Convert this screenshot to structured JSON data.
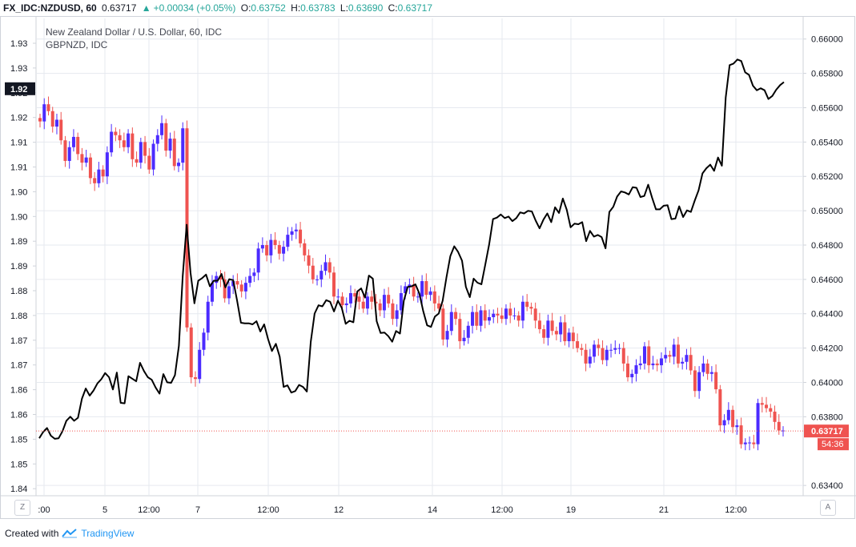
{
  "header": {
    "symbol": "FX_IDC:NZDUSD, 60",
    "last": "0.63717",
    "change": "+0.00034 (+0.05%)",
    "open_label": "O:",
    "open": "0.63752",
    "high_label": "H:",
    "high": "0.63783",
    "low_label": "L:",
    "low": "0.63690",
    "close_label": "C:",
    "close": "0.63717"
  },
  "legend": {
    "main": "New Zealand Dollar / U.S. Dollar, 60, IDC",
    "compare": "GBPNZD, IDC"
  },
  "price_tag": {
    "value": "0.63717",
    "countdown": "54:36"
  },
  "left_tag": "1.92",
  "buttons": {
    "zoom": "Z",
    "auto": "A"
  },
  "footer": {
    "created_with": "Created with",
    "brand": "TradingView"
  },
  "colors": {
    "up": "#4b2bff",
    "down": "#ef5350",
    "line": "#000000",
    "grid": "#e6e9ef",
    "price_line": "#ef5350",
    "tv_blue": "#2196f3"
  },
  "chart_data": {
    "type": "line",
    "x_ticks": [
      ":00",
      "5",
      "12:00",
      "7",
      "12:00",
      "12",
      "14",
      "12:00",
      "19",
      "21",
      "12:00"
    ],
    "left_axis": {
      "labels": [
        "1.93",
        "1.93",
        "1.92",
        "1.92",
        "1.91",
        "1.91",
        "1.90",
        "1.90",
        "1.89",
        "1.89",
        "1.88",
        "1.88",
        "1.87",
        "1.87",
        "1.86",
        "1.86",
        "1.85",
        "1.85",
        "1.84"
      ],
      "range": [
        1.842,
        1.935
      ]
    },
    "right_axis": {
      "labels": [
        "0.66000",
        "0.65800",
        "0.65600",
        "0.65400",
        "0.65200",
        "0.65000",
        "0.64800",
        "0.64600",
        "0.64400",
        "0.64200",
        "0.64000",
        "0.63800",
        "0.63400"
      ],
      "range": [
        0.6334,
        0.6612
      ]
    },
    "series": [
      {
        "name": "New Zealand Dollar / U.S. Dollar, 60, IDC",
        "kind": "candles",
        "axis": "right",
        "close": [
          0.6552,
          0.6562,
          0.6558,
          0.6549,
          0.6553,
          0.6541,
          0.6529,
          0.6537,
          0.6543,
          0.6533,
          0.6528,
          0.6531,
          0.6519,
          0.6516,
          0.6524,
          0.652,
          0.6534,
          0.6546,
          0.6544,
          0.6541,
          0.6537,
          0.6545,
          0.653,
          0.6528,
          0.654,
          0.6532,
          0.6524,
          0.6539,
          0.6544,
          0.6551,
          0.6535,
          0.6542,
          0.6526,
          0.6528,
          0.6548,
          0.6432,
          0.6403,
          0.6402,
          0.6419,
          0.6429,
          0.6447,
          0.6458,
          0.6462,
          0.646,
          0.6449,
          0.6456,
          0.6459,
          0.6457,
          0.6453,
          0.6458,
          0.6462,
          0.6464,
          0.6478,
          0.648,
          0.6474,
          0.6483,
          0.648,
          0.6475,
          0.6479,
          0.6486,
          0.6488,
          0.6489,
          0.6481,
          0.6474,
          0.6468,
          0.646,
          0.646,
          0.6465,
          0.647,
          0.6464,
          0.645,
          0.645,
          0.6445,
          0.6446,
          0.6452,
          0.645,
          0.6447,
          0.6443,
          0.645,
          0.6447,
          0.6446,
          0.6442,
          0.6451,
          0.6446,
          0.6437,
          0.6442,
          0.6452,
          0.6456,
          0.6457,
          0.645,
          0.645,
          0.6459,
          0.6451,
          0.6453,
          0.6446,
          0.6443,
          0.6425,
          0.643,
          0.6441,
          0.6437,
          0.6424,
          0.6426,
          0.6433,
          0.6441,
          0.6433,
          0.6442,
          0.6436,
          0.6438,
          0.644,
          0.6439,
          0.6437,
          0.6443,
          0.6439,
          0.6439,
          0.6436,
          0.6447,
          0.6444,
          0.6443,
          0.6436,
          0.6431,
          0.6426,
          0.6436,
          0.643,
          0.6428,
          0.6435,
          0.6424,
          0.6429,
          0.6424,
          0.642,
          0.6419,
          0.6411,
          0.6415,
          0.6422,
          0.642,
          0.6413,
          0.6419,
          0.6419,
          0.642,
          0.642,
          0.6411,
          0.6403,
          0.6405,
          0.641,
          0.6411,
          0.6421,
          0.641,
          0.6411,
          0.641,
          0.6414,
          0.6416,
          0.6415,
          0.6422,
          0.6411,
          0.6412,
          0.6416,
          0.6407,
          0.6395,
          0.6406,
          0.6411,
          0.6405,
          0.6406,
          0.6396,
          0.6375,
          0.6378,
          0.6384,
          0.6374,
          0.6375,
          0.6364,
          0.6365,
          0.6365,
          0.6364,
          0.6388,
          0.6387,
          0.6385,
          0.6383,
          0.6377,
          0.6372,
          0.6372
        ],
        "last": 0.63717
      },
      {
        "name": "GBPNZD, IDC",
        "kind": "line",
        "axis": "left",
        "values": [
          1.8532,
          1.8544,
          1.8552,
          1.8537,
          1.8531,
          1.8532,
          1.8546,
          1.8566,
          1.8574,
          1.8566,
          1.8572,
          1.8609,
          1.8629,
          1.8615,
          1.8625,
          1.8639,
          1.8647,
          1.8659,
          1.8651,
          1.8627,
          1.866,
          1.8601,
          1.86,
          1.8653,
          1.8648,
          1.8643,
          1.8679,
          1.8663,
          1.8651,
          1.8646,
          1.8631,
          1.8619,
          1.8657,
          1.8641,
          1.864,
          1.8655,
          1.8712,
          1.8848,
          1.8948,
          1.8855,
          1.8795,
          1.8839,
          1.8844,
          1.8851,
          1.8828,
          1.8839,
          1.8839,
          1.8852,
          1.8826,
          1.8842,
          1.884,
          1.8801,
          1.8757,
          1.8756,
          1.8756,
          1.8754,
          1.876,
          1.874,
          1.8754,
          1.8725,
          1.8702,
          1.8716,
          1.8691,
          1.8632,
          1.8635,
          1.8621,
          1.8624,
          1.8636,
          1.8632,
          1.8623,
          1.872,
          1.8775,
          1.8791,
          1.8789,
          1.8801,
          1.8798,
          1.8779,
          1.88,
          1.8786,
          1.8755,
          1.8761,
          1.8758,
          1.8818,
          1.8824,
          1.8806,
          1.8849,
          1.8843,
          1.876,
          1.8737,
          1.8738,
          1.8731,
          1.872,
          1.8741,
          1.8736,
          1.88,
          1.8827,
          1.8828,
          1.8832,
          1.8814,
          1.878,
          1.8752,
          1.8749,
          1.8769,
          1.8775,
          1.88,
          1.8846,
          1.8887,
          1.8906,
          1.8895,
          1.8878,
          1.8827,
          1.8807,
          1.8843,
          1.8835,
          1.8832,
          1.887,
          1.891,
          1.8959,
          1.8962,
          1.8968,
          1.8961,
          1.8964,
          1.8955,
          1.8961,
          1.8972,
          1.897,
          1.8975,
          1.8974,
          1.8956,
          1.8941,
          1.8958,
          1.897,
          1.8953,
          1.8982,
          1.8971,
          1.8999,
          1.8977,
          1.8943,
          1.895,
          1.8949,
          1.8953,
          1.8916,
          1.8936,
          1.8925,
          1.8928,
          1.8924,
          1.8902,
          1.8973,
          1.8983,
          1.9003,
          1.9013,
          1.9011,
          1.9007,
          1.9021,
          1.902,
          1.9002,
          1.9004,
          1.9026,
          1.9001,
          1.8978,
          1.8978,
          1.8985,
          1.8986,
          1.8959,
          1.896,
          1.8984,
          1.8963,
          1.8976,
          1.8973,
          1.8995,
          1.9015,
          1.9048,
          1.9058,
          1.9065,
          1.9053,
          1.9079,
          1.9063,
          1.9196,
          1.9259,
          1.9262,
          1.927,
          1.9267,
          1.9245,
          1.924,
          1.9219,
          1.921,
          1.9214,
          1.921,
          1.9193,
          1.9199,
          1.9211,
          1.922,
          1.9226
        ]
      }
    ],
    "grid": true
  }
}
